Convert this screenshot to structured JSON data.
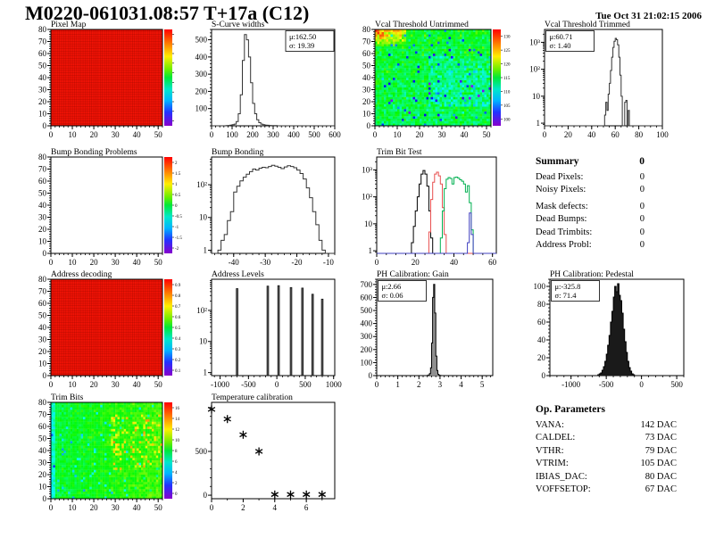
{
  "page": {
    "title": "M0220-061031.08:57 T+17a (C12)",
    "timestamp": "Tue Oct 31 21:02:15 2006"
  },
  "summary": {
    "heading": "Summary",
    "heading_value": "0",
    "rows": [
      {
        "label": "Dead Pixels:",
        "value": "0"
      },
      {
        "label": "Noisy Pixels:",
        "value": "0"
      },
      {
        "label": "Mask defects:",
        "value": "0"
      },
      {
        "label": "Dead Bumps:",
        "value": "0"
      },
      {
        "label": "Dead Trimbits:",
        "value": "0"
      },
      {
        "label": "Address Probl:",
        "value": "0"
      }
    ]
  },
  "op_parameters": {
    "heading": "Op. Parameters",
    "rows": [
      {
        "label": "VANA:",
        "value": "142 DAC"
      },
      {
        "label": "CALDEL:",
        "value": "73 DAC"
      },
      {
        "label": "VTHR:",
        "value": "79 DAC"
      },
      {
        "label": "VTRIM:",
        "value": "105 DAC"
      },
      {
        "label": "IBIAS_DAC:",
        "value": "80 DAC"
      },
      {
        "label": "VOFFSETOP:",
        "value": "67 DAC"
      }
    ]
  },
  "chart_data": [
    {
      "id": "pixel-map",
      "type": "heatmap",
      "title": "Pixel Map",
      "xlim": [
        0,
        52
      ],
      "xticks": [
        0,
        10,
        20,
        30,
        40,
        50
      ],
      "ylim": [
        0,
        80
      ],
      "yticks": [
        0,
        10,
        20,
        30,
        40,
        50,
        60,
        70,
        80
      ],
      "fill": {
        "mode": "solid",
        "color": "#f01205"
      },
      "colorbar": {
        "labels": []
      }
    },
    {
      "id": "s-curve-widths",
      "type": "hist",
      "title": "S-Curve widths",
      "stats": [
        "μ:162.50",
        "σ: 19.39"
      ],
      "stats_pos": "tr",
      "xlim": [
        0,
        600
      ],
      "xticks": [
        0,
        100,
        200,
        300,
        400,
        500,
        600
      ],
      "ylim": [
        0,
        560
      ],
      "yticks": [
        100,
        200,
        300,
        400,
        500
      ],
      "bin_start": 60,
      "bin_width": 10,
      "counts": [
        0,
        1,
        2,
        4,
        6,
        10,
        25,
        70,
        180,
        380,
        530,
        500,
        400,
        250,
        130,
        70,
        35,
        18,
        10,
        6,
        4,
        3,
        2,
        1,
        1,
        1
      ]
    },
    {
      "id": "vcal-threshold-untrimmed",
      "type": "heatmap",
      "title": "Vcal Threshold Untrimmed",
      "xlim": [
        0,
        52
      ],
      "xticks": [
        0,
        10,
        20,
        30,
        40,
        50
      ],
      "ylim": [
        0,
        80
      ],
      "yticks": [
        0,
        10,
        20,
        30,
        40,
        50,
        60,
        70,
        80
      ],
      "fill": {
        "mode": "noise",
        "pattern": "vcal",
        "seed": 7,
        "vmin": 99,
        "vmax": 133
      },
      "colorbar": {
        "labels": [
          "130",
          "125",
          "120",
          "115",
          "110",
          "105",
          "100"
        ]
      }
    },
    {
      "id": "vcal-threshold-trimmed",
      "type": "hist",
      "title": "Vcal Threshold Trimmed",
      "stats": [
        "μ:60.71",
        "σ: 1.40"
      ],
      "stats_pos": "tl",
      "ylog": true,
      "xlim": [
        0,
        100
      ],
      "xticks": [
        0,
        20,
        40,
        60,
        80,
        100
      ],
      "ylim": [
        0.8,
        3000
      ],
      "yticks": [
        1,
        10,
        100,
        1000
      ],
      "bin_start": 51,
      "bin_width": 1,
      "counts": [
        2,
        6,
        3,
        12,
        30,
        90,
        280,
        650,
        1100,
        1400,
        1250,
        800,
        280,
        60,
        10,
        0,
        0,
        6,
        7,
        0,
        3
      ]
    },
    {
      "id": "bump-bonding-problems",
      "type": "heatmap",
      "title": "Bump Bonding Problems",
      "xlim": [
        0,
        52
      ],
      "xticks": [
        0,
        10,
        20,
        30,
        40,
        50
      ],
      "ylim": [
        0,
        80
      ],
      "yticks": [
        0,
        10,
        20,
        30,
        40,
        50,
        60,
        70,
        80
      ],
      "fill": {
        "mode": "empty"
      },
      "colorbar": {
        "labels": [
          "2",
          "1.5",
          "1",
          "0.5",
          "0",
          "-0.5",
          "-1",
          "-1.5",
          "-2"
        ]
      }
    },
    {
      "id": "bump-bonding",
      "type": "hist",
      "title": "Bump Bonding",
      "ylog": true,
      "xlim": [
        -47,
        -8
      ],
      "xticks": [
        -40,
        -30,
        -20,
        -10
      ],
      "ylim": [
        0.8,
        700
      ],
      "yticks": [
        1,
        10,
        100
      ],
      "bin_start": -45,
      "bin_width": 1,
      "counts": [
        1,
        2,
        3,
        8,
        15,
        60,
        90,
        130,
        170,
        210,
        250,
        300,
        280,
        320,
        340,
        330,
        360,
        390,
        370,
        340,
        310,
        350,
        380,
        360,
        330,
        280,
        220,
        150,
        80,
        40,
        15,
        6,
        2,
        1
      ]
    },
    {
      "id": "trim-bit-test",
      "type": "multihist",
      "title": "Trim Bit Test",
      "ylog": true,
      "xlim": [
        0,
        62
      ],
      "xticks": [
        0,
        20,
        40,
        60
      ],
      "ylim": [
        0.8,
        3000
      ],
      "yticks": [
        1,
        10,
        100,
        1000
      ],
      "series": [
        {
          "color": "#000000",
          "bin_start": 18,
          "bin_width": 1,
          "counts": [
            2,
            8,
            30,
            100,
            300,
            700,
            950,
            700,
            250,
            30,
            3
          ]
        },
        {
          "color": "#e85050",
          "bin_start": 27,
          "bin_width": 1,
          "counts": [
            5,
            80,
            350,
            700,
            820,
            600,
            300,
            40,
            4
          ]
        },
        {
          "color": "#00b050",
          "bin_start": 33,
          "bin_width": 1,
          "counts": [
            3,
            30,
            200,
            450,
            520,
            480,
            300,
            520,
            540,
            490,
            430,
            380,
            300,
            150,
            260,
            60,
            6
          ]
        },
        {
          "color": "#4040c0",
          "bin_start": 47,
          "bin_width": 1,
          "counts": [
            2,
            25,
            4
          ]
        }
      ]
    },
    {
      "id": "address-decoding",
      "type": "heatmap",
      "title": "Address decoding",
      "xlim": [
        0,
        52
      ],
      "xticks": [
        0,
        10,
        20,
        30,
        40,
        50
      ],
      "ylim": [
        0,
        80
      ],
      "yticks": [
        0,
        10,
        20,
        30,
        40,
        50,
        60,
        70,
        80
      ],
      "fill": {
        "mode": "solid",
        "color": "#f01205"
      },
      "colorbar": {
        "labels": [
          "0.9",
          "0.8",
          "0.7",
          "0.6",
          "0.5",
          "0.4",
          "0.3",
          "0.2",
          "0.1"
        ]
      }
    },
    {
      "id": "address-levels",
      "type": "spikes",
      "title": "Address Levels",
      "ylog": true,
      "xlim": [
        -1150,
        1020
      ],
      "xticks": [
        -1000,
        -500,
        0,
        500,
        1000
      ],
      "ylim": [
        0.8,
        1000
      ],
      "yticks": [
        1,
        10,
        100
      ],
      "spike_width": 28,
      "spikes": [
        [
          -700,
          500
        ],
        [
          -160,
          600
        ],
        [
          30,
          620
        ],
        [
          250,
          540
        ],
        [
          450,
          520
        ],
        [
          630,
          330
        ],
        [
          800,
          230
        ]
      ]
    },
    {
      "id": "ph-calibration-gain",
      "type": "hist",
      "title": "PH Calibration: Gain",
      "stats": [
        "μ:2.66",
        "σ: 0.06"
      ],
      "stats_pos": "tl",
      "xlim": [
        0,
        5.5
      ],
      "xticks": [
        0,
        1,
        2,
        3,
        4,
        5
      ],
      "ylim": [
        0,
        740
      ],
      "yticks": [
        0,
        100,
        200,
        300,
        400,
        500,
        600,
        700
      ],
      "bin_start": 2.4,
      "bin_width": 0.05,
      "counts": [
        2,
        5,
        15,
        60,
        250,
        600,
        700,
        480,
        150,
        40,
        10,
        3,
        1
      ],
      "fill_color": "#909090"
    },
    {
      "id": "ph-calibration-pedestal",
      "type": "hist",
      "title": "PH Calibration: Pedestal",
      "stats": [
        "μ:-325.8",
        "σ: 71.4"
      ],
      "stats_pos": "tl",
      "xlim": [
        -1300,
        600
      ],
      "xticks": [
        -1000,
        -500,
        0,
        500
      ],
      "ylim": [
        0,
        108
      ],
      "yticks": [
        0,
        20,
        40,
        60,
        80,
        100
      ],
      "bin_start": -620,
      "bin_width": 20,
      "counts": [
        1,
        2,
        3,
        6,
        10,
        16,
        24,
        34,
        45,
        60,
        72,
        88,
        100,
        94,
        103,
        90,
        84,
        70,
        52,
        38,
        26,
        16,
        9,
        5,
        2,
        1
      ],
      "fill_color": "#1a1a1a"
    },
    {
      "id": "trim-bits",
      "type": "heatmap",
      "title": "Trim Bits",
      "xlim": [
        0,
        52
      ],
      "xticks": [
        0,
        10,
        20,
        30,
        40,
        50
      ],
      "ylim": [
        0,
        80
      ],
      "yticks": [
        0,
        10,
        20,
        30,
        40,
        50,
        60,
        70,
        80
      ],
      "fill": {
        "mode": "noise",
        "pattern": "trimbits",
        "seed": 13,
        "vmin": 0,
        "vmax": 16
      },
      "colorbar": {
        "labels": [
          "16",
          "14",
          "12",
          "10",
          "8",
          "6",
          "4",
          "2",
          "0"
        ]
      }
    },
    {
      "id": "temperature-calibration",
      "type": "scatter",
      "title": "Temperature calibration",
      "xlim": [
        0,
        7.8
      ],
      "xticks": [
        0,
        2,
        4,
        6
      ],
      "ylim": [
        -40,
        1060
      ],
      "yticks": [
        0,
        500,
        1000
      ],
      "ytick_labels": [
        "0",
        "500",
        ""
      ],
      "x": [
        0,
        1,
        2,
        3,
        4,
        5,
        6,
        7
      ],
      "y": [
        980,
        870,
        690,
        500,
        8,
        8,
        8,
        8
      ],
      "marker": "asterisk"
    }
  ]
}
